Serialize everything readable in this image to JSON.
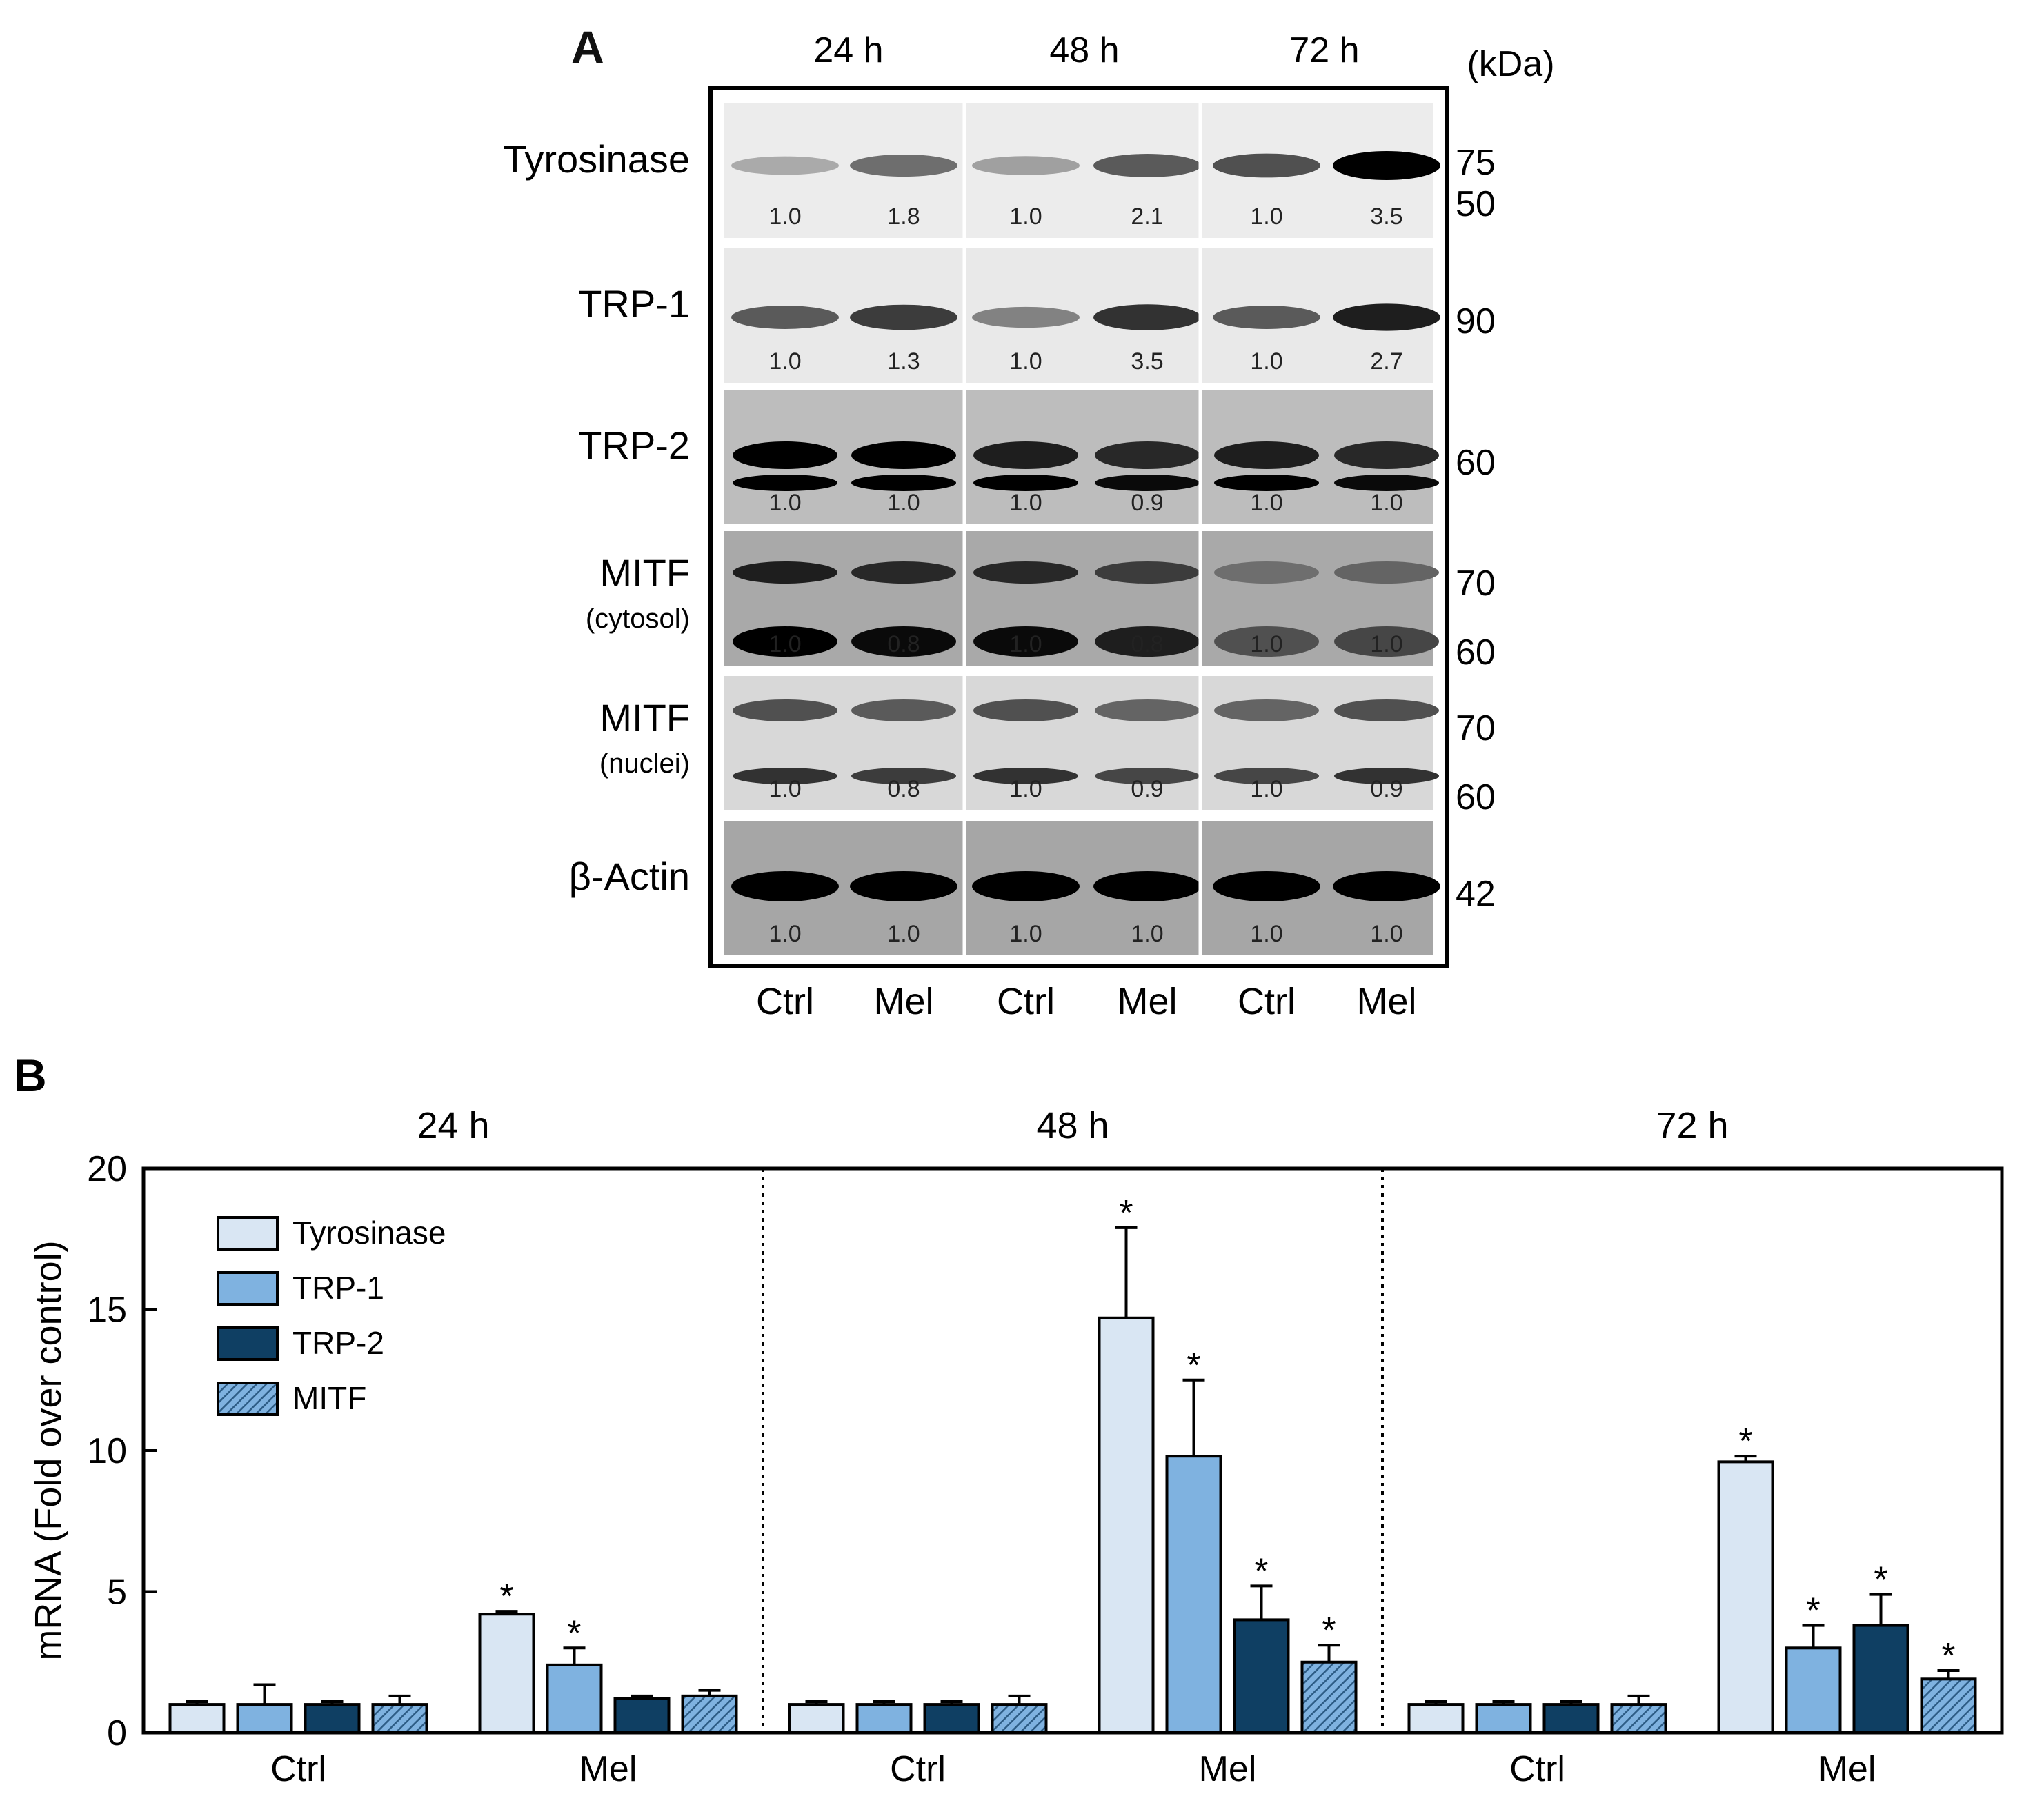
{
  "panel_a": {
    "letter": "A",
    "timepoints": [
      "24 h",
      "48 h",
      "72 h"
    ],
    "kda_unit": "(kDa)",
    "conditions": [
      "Ctrl",
      "Mel",
      "Ctrl",
      "Mel",
      "Ctrl",
      "Mel"
    ],
    "rows": [
      {
        "label": "Tyrosinase",
        "sublabel": "",
        "markers": [
          "75",
          "50"
        ],
        "quant": [
          "1.0",
          "1.8",
          "1.0",
          "2.1",
          "1.0",
          "3.5"
        ],
        "bg": "#ececec",
        "intensity": [
          0.15,
          0.45,
          0.2,
          0.55,
          0.6,
          1.0
        ],
        "bands": 1
      },
      {
        "label": "TRP-1",
        "sublabel": "",
        "markers": [
          "90"
        ],
        "quant": [
          "1.0",
          "1.3",
          "1.0",
          "3.5",
          "1.0",
          "2.7"
        ],
        "bg": "#e9e9e9",
        "intensity": [
          0.55,
          0.7,
          0.35,
          0.75,
          0.55,
          0.85
        ],
        "bands": 1
      },
      {
        "label": "TRP-2",
        "sublabel": "",
        "markers": [
          "60"
        ],
        "quant": [
          "1.0",
          "1.0",
          "1.0",
          "0.9",
          "1.0",
          "1.0"
        ],
        "bg": "#bdbdbd",
        "intensity": [
          1.0,
          1.0,
          0.85,
          0.8,
          0.85,
          0.8
        ],
        "bands": 2
      },
      {
        "label": "MITF",
        "sublabel": "(cytosol)",
        "markers": [
          "70",
          "60"
        ],
        "quant": [
          "1.0",
          "0.8",
          "1.0",
          "0.8",
          "1.0",
          "1.0"
        ],
        "bg": "#a9a9a9",
        "intensity": [
          0.85,
          0.8,
          0.8,
          0.7,
          0.45,
          0.5
        ],
        "bands": 2
      },
      {
        "label": "MITF",
        "sublabel": "(nuclei)",
        "markers": [
          "70",
          "60"
        ],
        "quant": [
          "1.0",
          "0.8",
          "1.0",
          "0.9",
          "1.0",
          "0.9"
        ],
        "bg": "#d8d8d8",
        "intensity": [
          0.6,
          0.55,
          0.6,
          0.5,
          0.5,
          0.6
        ],
        "bands": 2
      },
      {
        "label": "β-Actin",
        "sublabel": "",
        "markers": [
          "42"
        ],
        "quant": [
          "1.0",
          "1.0",
          "1.0",
          "1.0",
          "1.0",
          "1.0"
        ],
        "bg": "#a6a6a6",
        "intensity": [
          1.0,
          1.0,
          1.0,
          1.0,
          1.0,
          1.0
        ],
        "bands": 1
      }
    ]
  },
  "chart_data": {
    "type": "bar",
    "panel_letter": "B",
    "groups": [
      "24 h",
      "48 h",
      "72 h"
    ],
    "categories": [
      "Ctrl",
      "Mel",
      "Ctrl",
      "Mel",
      "Ctrl",
      "Mel"
    ],
    "ylabel": "mRNA (Fold over control)",
    "ylim": [
      0,
      20
    ],
    "yticks": [
      0,
      5,
      10,
      15,
      20
    ],
    "legend_position": "top-left",
    "series": [
      {
        "name": "Tyrosinase",
        "color": "#d9e6f3",
        "pattern": "solid",
        "values": [
          1.0,
          4.2,
          1.0,
          14.7,
          1.0,
          9.6
        ],
        "errors": [
          0.1,
          0.1,
          0.1,
          3.2,
          0.1,
          0.2
        ],
        "significant": [
          false,
          true,
          false,
          true,
          false,
          true
        ]
      },
      {
        "name": "TRP-1",
        "color": "#7fb2e0",
        "pattern": "solid",
        "values": [
          1.0,
          2.4,
          1.0,
          9.8,
          1.0,
          3.0
        ],
        "errors": [
          0.7,
          0.6,
          0.1,
          2.7,
          0.1,
          0.8
        ],
        "significant": [
          false,
          true,
          false,
          true,
          false,
          true
        ]
      },
      {
        "name": "TRP-2",
        "color": "#0f3f63",
        "pattern": "solid",
        "values": [
          1.0,
          1.2,
          1.0,
          4.0,
          1.0,
          3.8
        ],
        "errors": [
          0.1,
          0.1,
          0.1,
          1.2,
          0.1,
          1.1
        ],
        "significant": [
          false,
          false,
          false,
          true,
          false,
          true
        ]
      },
      {
        "name": "MITF",
        "color": "#4a80ad",
        "pattern": "hatched",
        "values": [
          1.0,
          1.3,
          1.0,
          2.5,
          1.0,
          1.9
        ],
        "errors": [
          0.3,
          0.2,
          0.3,
          0.6,
          0.3,
          0.3
        ],
        "significant": [
          false,
          false,
          false,
          true,
          false,
          true
        ]
      }
    ],
    "significance_mark": "*"
  }
}
